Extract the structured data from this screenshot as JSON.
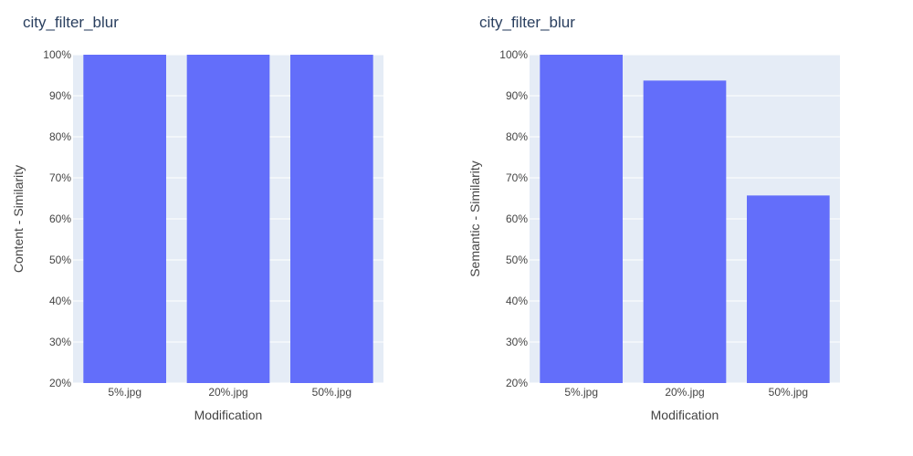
{
  "chart_data": [
    {
      "type": "bar",
      "title": "city_filter_blur",
      "xlabel": "Modification",
      "ylabel": "Content - Similarity",
      "categories": [
        "5%.jpg",
        "20%.jpg",
        "50%.jpg"
      ],
      "values": [
        1.0,
        1.0,
        1.0
      ],
      "ylim": [
        0.2,
        1.0
      ],
      "yticks": [
        0.2,
        0.3,
        0.4,
        0.5,
        0.6,
        0.7,
        0.8,
        0.9,
        1.0
      ],
      "ytick_labels": [
        "20%",
        "30%",
        "40%",
        "50%",
        "60%",
        "70%",
        "80%",
        "90%",
        "100%"
      ],
      "grid": true,
      "bar_color": "#636efa",
      "plot_bg": "#e5ecf6"
    },
    {
      "type": "bar",
      "title": "city_filter_blur",
      "xlabel": "Modification",
      "ylabel": "Semantic - Similarity",
      "categories": [
        "5%.jpg",
        "20%.jpg",
        "50%.jpg"
      ],
      "values": [
        1.0,
        0.937,
        0.657
      ],
      "ylim": [
        0.2,
        1.0
      ],
      "yticks": [
        0.2,
        0.3,
        0.4,
        0.5,
        0.6,
        0.7,
        0.8,
        0.9,
        1.0
      ],
      "ytick_labels": [
        "20%",
        "30%",
        "40%",
        "50%",
        "60%",
        "70%",
        "80%",
        "90%",
        "100%"
      ],
      "grid": true,
      "bar_color": "#636efa",
      "plot_bg": "#e5ecf6"
    }
  ]
}
